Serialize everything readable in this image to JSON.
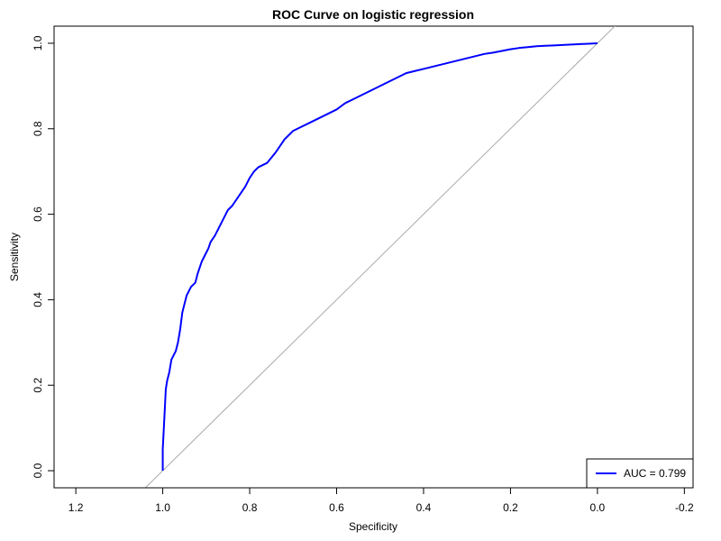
{
  "chart_data": {
    "type": "line",
    "title": "ROC Curve on logistic regression",
    "xlabel": "Specificity",
    "ylabel": "Sensitivity",
    "xlim": [
      1.25,
      -0.22
    ],
    "ylim": [
      -0.04,
      1.04
    ],
    "x_reversed": true,
    "x_ticks": [
      1.2,
      1.0,
      0.8,
      0.6,
      0.4,
      0.2,
      0.0,
      -0.2
    ],
    "x_tick_labels": [
      "1.2",
      "1.0",
      "0.8",
      "0.6",
      "0.4",
      "0.2",
      "0.0",
      "-0.2"
    ],
    "y_ticks": [
      0.0,
      0.2,
      0.4,
      0.6,
      0.8,
      1.0
    ],
    "y_tick_labels": [
      "0.0",
      "0.2",
      "0.4",
      "0.6",
      "0.8",
      "1.0"
    ],
    "grid": false,
    "legend_position": "bottom-right",
    "series": [
      {
        "name": "AUC = 0.799",
        "color": "#0000ff",
        "x": [
          1.0,
          1.0,
          0.997,
          0.995,
          0.993,
          0.99,
          0.985,
          0.98,
          0.97,
          0.965,
          0.96,
          0.955,
          0.95,
          0.945,
          0.94,
          0.935,
          0.925,
          0.92,
          0.91,
          0.905,
          0.9,
          0.895,
          0.89,
          0.88,
          0.87,
          0.86,
          0.85,
          0.84,
          0.83,
          0.82,
          0.81,
          0.8,
          0.79,
          0.78,
          0.77,
          0.76,
          0.74,
          0.72,
          0.7,
          0.68,
          0.66,
          0.64,
          0.62,
          0.6,
          0.58,
          0.56,
          0.54,
          0.52,
          0.5,
          0.48,
          0.46,
          0.44,
          0.42,
          0.4,
          0.38,
          0.36,
          0.34,
          0.32,
          0.3,
          0.28,
          0.26,
          0.24,
          0.22,
          0.2,
          0.18,
          0.16,
          0.14,
          0.12,
          0.1,
          0.08,
          0.06,
          0.04,
          0.02,
          0.0
        ],
        "y": [
          0.0,
          0.05,
          0.11,
          0.15,
          0.19,
          0.21,
          0.23,
          0.26,
          0.28,
          0.3,
          0.33,
          0.37,
          0.39,
          0.41,
          0.42,
          0.43,
          0.44,
          0.46,
          0.49,
          0.5,
          0.51,
          0.52,
          0.535,
          0.55,
          0.57,
          0.59,
          0.61,
          0.62,
          0.635,
          0.65,
          0.665,
          0.685,
          0.7,
          0.71,
          0.715,
          0.72,
          0.745,
          0.775,
          0.795,
          0.805,
          0.815,
          0.825,
          0.835,
          0.845,
          0.86,
          0.87,
          0.88,
          0.89,
          0.9,
          0.91,
          0.92,
          0.93,
          0.935,
          0.94,
          0.945,
          0.95,
          0.955,
          0.96,
          0.965,
          0.97,
          0.975,
          0.978,
          0.982,
          0.986,
          0.989,
          0.991,
          0.993,
          0.994,
          0.995,
          0.996,
          0.997,
          0.998,
          0.999,
          1.0
        ]
      }
    ],
    "reference_line": {
      "x": [
        1.05,
        -0.05
      ],
      "y": [
        -0.05,
        1.05
      ],
      "color": "#aaaaaa"
    }
  }
}
